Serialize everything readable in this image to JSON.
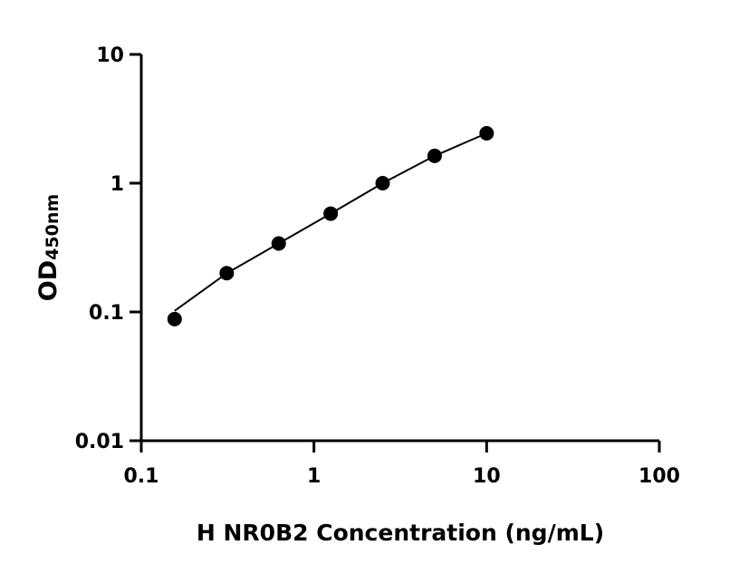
{
  "chart_data": {
    "type": "scatter",
    "xlabel": "H NR0B2 Concentration (ng/mL)",
    "ylabel_main": "OD",
    "ylabel_sub": "450nm",
    "x_scale": "log",
    "y_scale": "log",
    "xlim": [
      0.1,
      100
    ],
    "ylim": [
      0.01,
      10
    ],
    "x_ticks": [
      "0.1",
      "1",
      "10",
      "100"
    ],
    "y_ticks": [
      "0.01",
      "0.1",
      "1",
      "10"
    ],
    "grid": false,
    "points": {
      "x": [
        0.156,
        0.3125,
        0.625,
        1.25,
        2.5,
        5,
        10
      ],
      "y": [
        0.088,
        0.2,
        0.34,
        0.58,
        1.0,
        1.63,
        2.44
      ]
    },
    "fit_curve": {
      "x": [
        0.156,
        0.3125,
        0.625,
        1.25,
        2.5,
        5,
        10
      ],
      "y": [
        0.102,
        0.2,
        0.34,
        0.58,
        1.0,
        1.63,
        2.44
      ]
    },
    "color": "#000000"
  }
}
